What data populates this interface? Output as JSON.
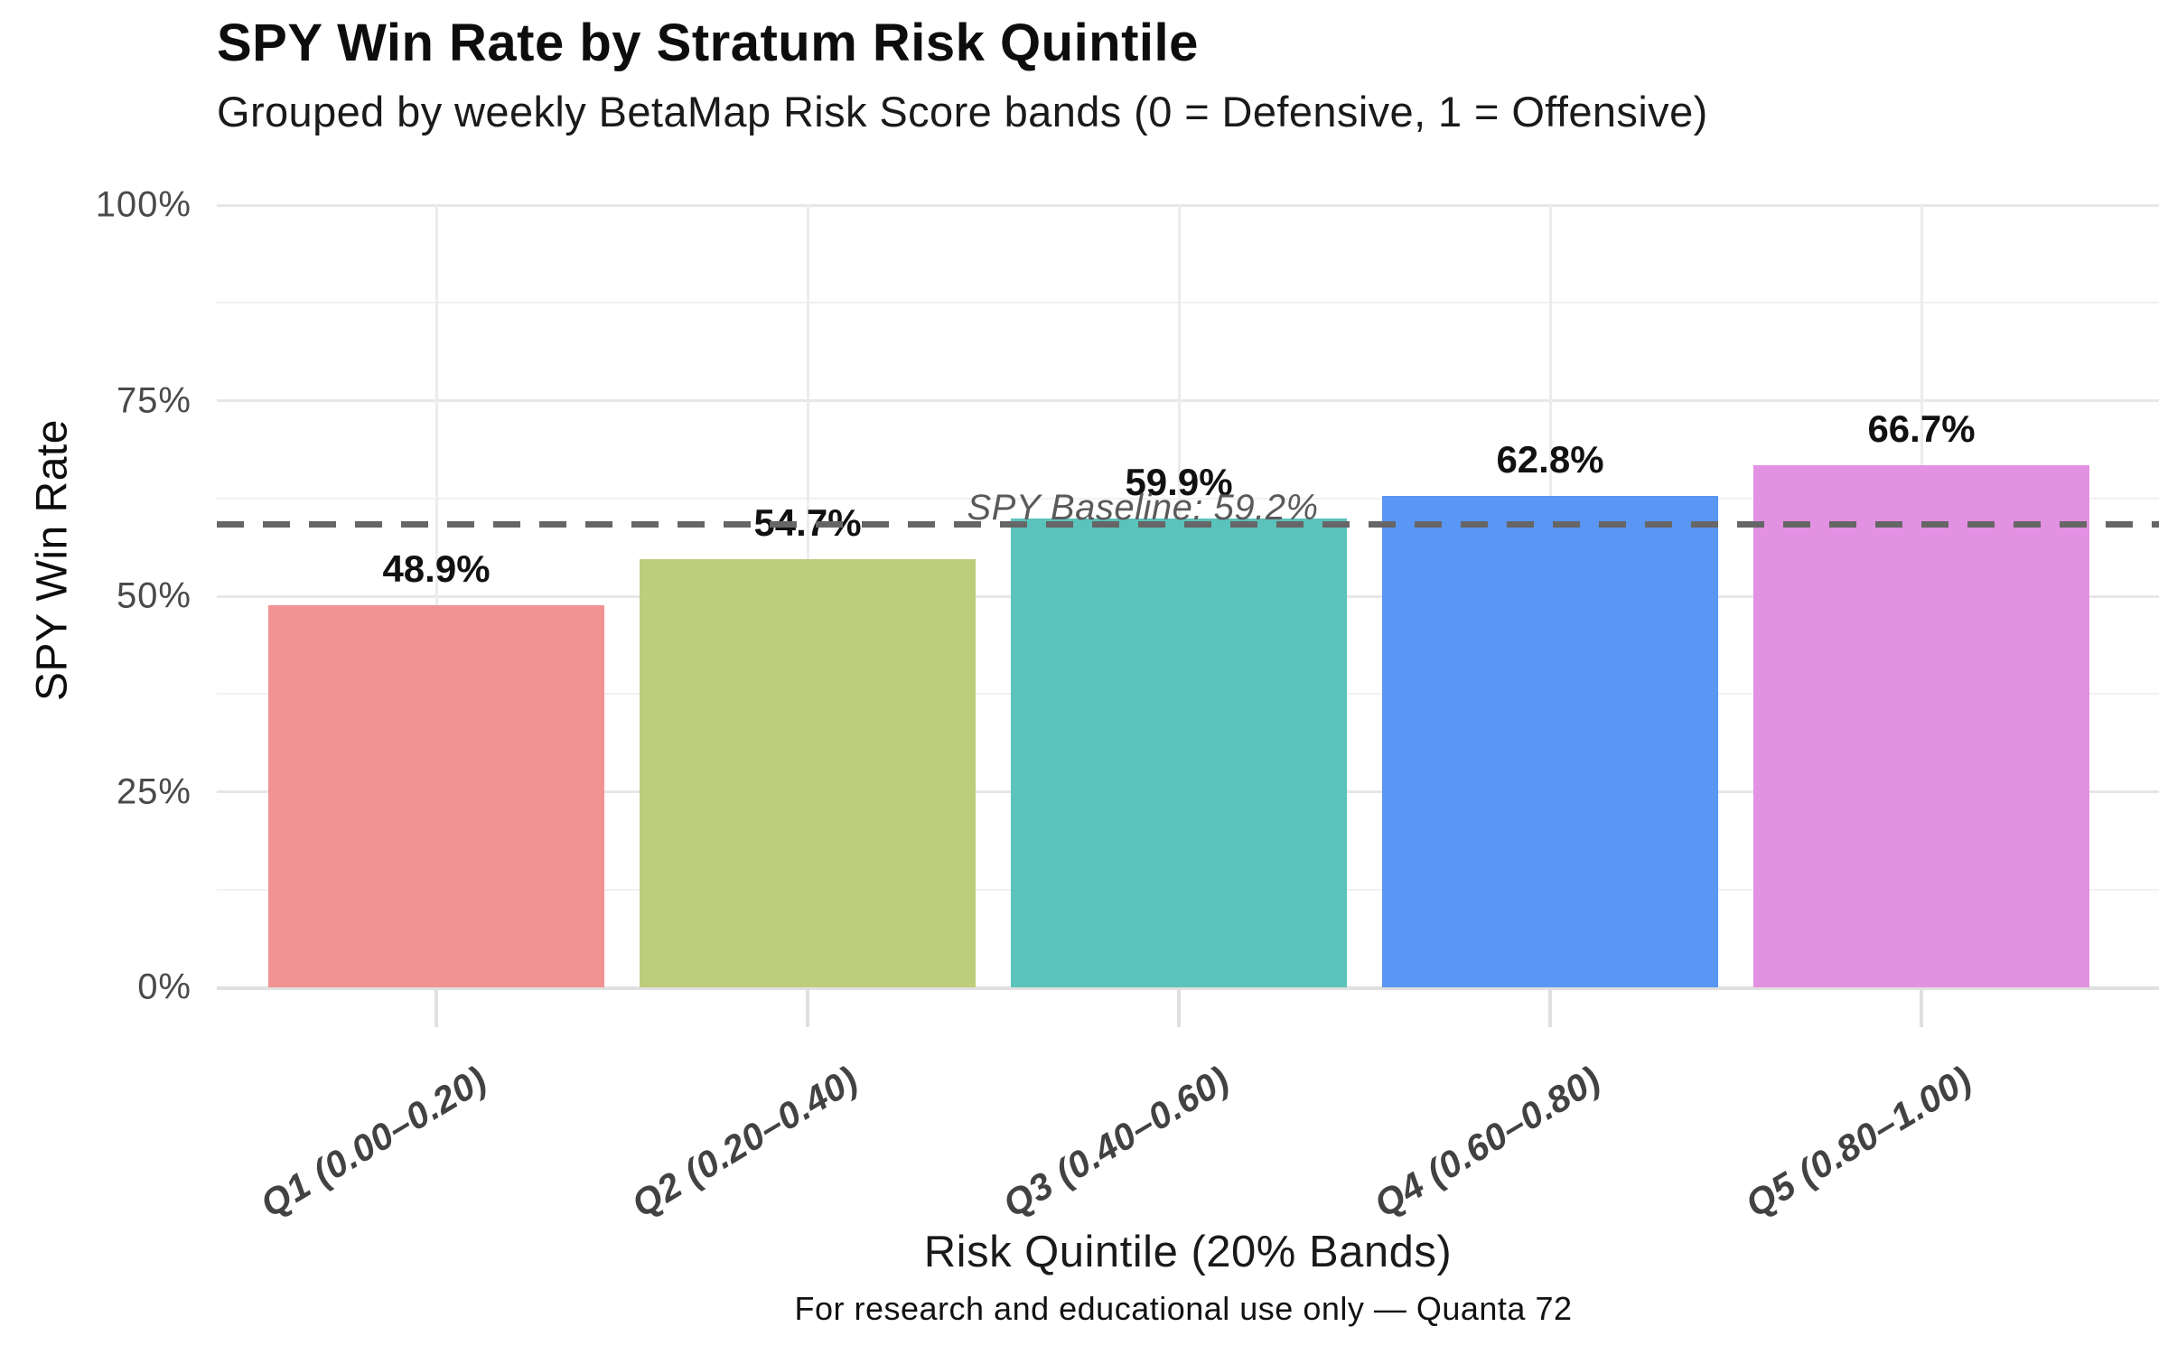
{
  "header": {
    "title": "SPY Win Rate by Stratum Risk Quintile",
    "subtitle": "Grouped by weekly BetaMap Risk Score bands (0 = Defensive, 1 = Offensive)"
  },
  "footer": {
    "attribution": "For research and educational use only — Quanta 72"
  },
  "chart_data": {
    "type": "bar",
    "title": "SPY Win Rate by Stratum Risk Quintile",
    "subtitle": "Grouped by weekly BetaMap Risk Score bands (0 = Defensive, 1 = Offensive)",
    "xlabel": "Risk Quintile (20% Bands)",
    "ylabel": "SPY Win Rate",
    "categories": [
      "Q1 (0.00–0.20)",
      "Q2 (0.20–0.40)",
      "Q3 (0.40–0.60)",
      "Q4 (0.60–0.80)",
      "Q5 (0.80–1.00)"
    ],
    "values": [
      48.9,
      54.7,
      59.9,
      62.8,
      66.7
    ],
    "value_labels": [
      "48.9%",
      "54.7%",
      "59.9%",
      "62.8%",
      "66.7%"
    ],
    "bar_colors": [
      "#F19293",
      "#BECD7B",
      "#5AC3BC",
      "#5A96F3",
      "#E391E2"
    ],
    "ylim": [
      0,
      100
    ],
    "yticks": [
      {
        "value": 0,
        "label": "0%"
      },
      {
        "value": 25,
        "label": "25%"
      },
      {
        "value": 50,
        "label": "50%"
      },
      {
        "value": 75,
        "label": "75%"
      },
      {
        "value": 100,
        "label": "100%"
      }
    ],
    "minor_yticks": [
      12.5,
      37.5,
      62.5,
      87.5
    ],
    "baseline": {
      "value": 59.2,
      "label": "SPY Baseline: 59.2%"
    },
    "grid": true,
    "legend": false,
    "colors": {
      "dashed_line": "#666666",
      "major_grid": "#e7e7e7",
      "minor_grid": "#f1f1f1",
      "tick_text": "#4a4a4a",
      "bar_label_text": "#111111"
    }
  }
}
